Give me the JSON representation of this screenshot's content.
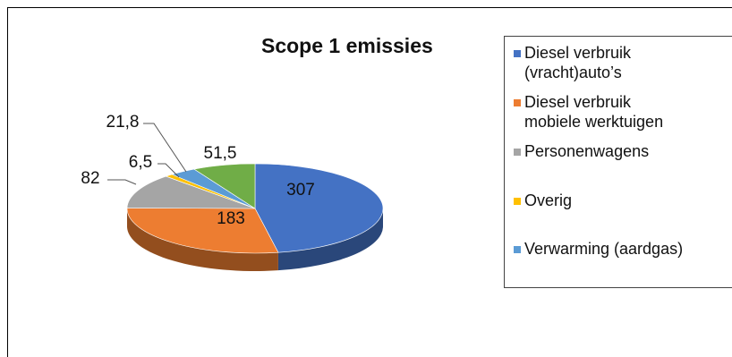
{
  "chart_data": {
    "type": "pie",
    "title": "Scope 1 emissies",
    "legend_position": "right",
    "slices": [
      {
        "label": "Diesel verbruik\n(vracht)auto’s",
        "value": 307,
        "value_label": "307",
        "color": "#4472c4"
      },
      {
        "label": "Diesel verbruik\nmobiele werktuigen",
        "value": 183,
        "value_label": "183",
        "color": "#ed7d31"
      },
      {
        "label": "Personenwagens",
        "value": 82,
        "value_label": "82",
        "color": "#a5a5a5"
      },
      {
        "label": "Overig",
        "value": 6.5,
        "value_label": "6,5",
        "color": "#ffc000"
      },
      {
        "label": "Verwarming (aardgas)",
        "value": 21.8,
        "value_label": "21,8",
        "color": "#5b9bd5"
      },
      {
        "label": "",
        "value": 51.5,
        "value_label": "51,5",
        "color": "#70ad47"
      }
    ]
  }
}
